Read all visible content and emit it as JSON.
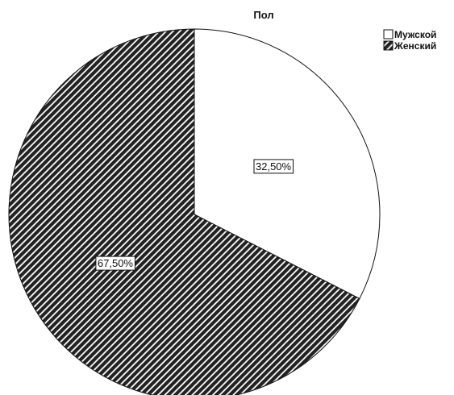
{
  "chart_data": {
    "type": "pie",
    "title": "Пол",
    "slices": [
      {
        "label": "Мужской",
        "value": 32.5,
        "display": "32,50%",
        "fill": "#ffffff",
        "pattern": "none"
      },
      {
        "label": "Женский",
        "value": 67.5,
        "display": "67,50%",
        "fill": "#222222",
        "pattern": "diagonal-hatch"
      }
    ],
    "legend": {
      "position": "top-right"
    },
    "start_angle_deg": 0,
    "direction": "clockwise"
  }
}
